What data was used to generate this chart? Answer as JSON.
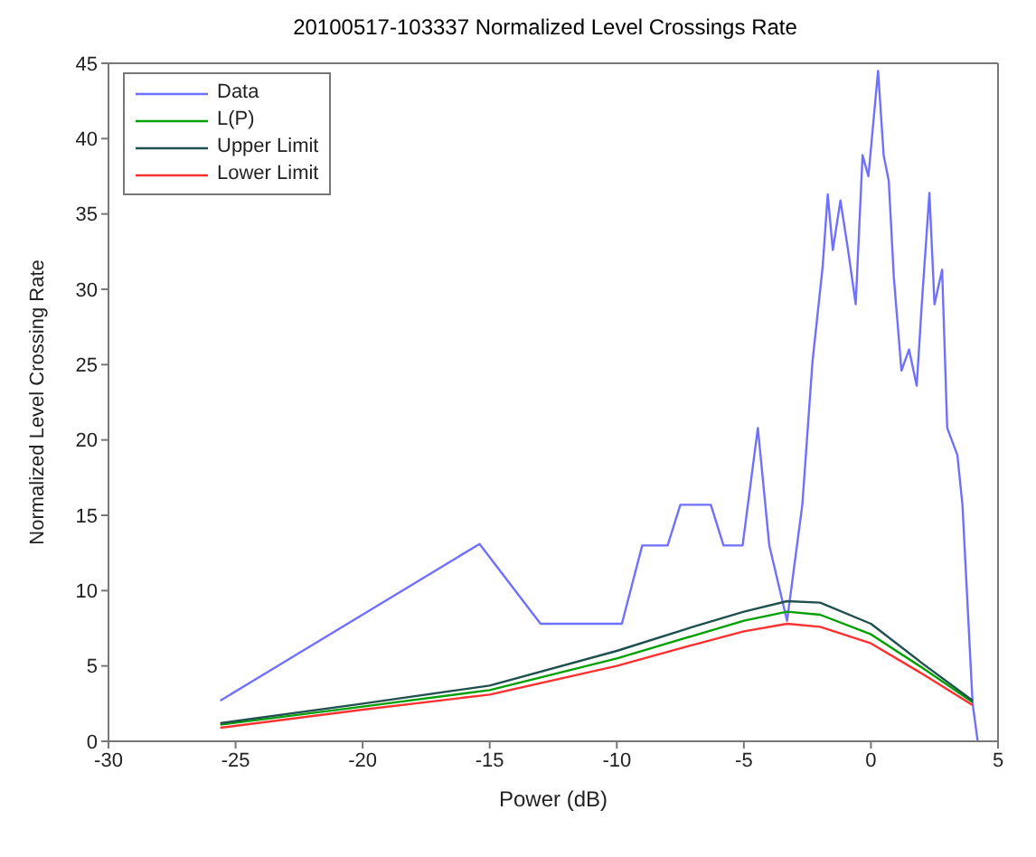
{
  "chart_data": {
    "type": "line",
    "title": "20100517-103337 Normalized Level Crossings Rate",
    "xlabel": "Power (dB)",
    "ylabel": "Normalized Level Crossing Rate",
    "xlim": [
      -30,
      5
    ],
    "xticks": [
      -30,
      -25,
      -20,
      -15,
      -10,
      -5,
      0,
      5
    ],
    "ylim": [
      0,
      45
    ],
    "yticks": [
      0,
      5,
      10,
      15,
      20,
      25,
      30,
      35,
      40,
      45
    ],
    "grid": false,
    "legend": "top left",
    "marker": "none",
    "line_style": "solid",
    "series": [
      {
        "name": "Data",
        "color": "#7070ff",
        "x": [
          -25.6,
          -15.4,
          -13,
          -9.8,
          -9,
          -8,
          -7.5,
          -6.3,
          -5.8,
          -5.05,
          -4.45,
          -4,
          -3.3,
          -2.7,
          -2.3,
          -1.9,
          -1.7,
          -1.5,
          -1.2,
          -0.9,
          -0.6,
          -0.33,
          -0.1,
          0.28,
          0.5,
          0.7,
          0.9,
          1.2,
          1.5,
          1.8,
          2,
          2.3,
          2.5,
          2.8,
          3,
          3.4,
          3.6,
          4,
          4.2
        ],
        "values": [
          2.7,
          13.1,
          7.8,
          7.8,
          13,
          13,
          15.7,
          15.7,
          13,
          13,
          20.8,
          13,
          8,
          15.7,
          25.2,
          31.5,
          36.3,
          32.6,
          35.9,
          32.6,
          29,
          38.9,
          37.5,
          44.5,
          38.9,
          37.2,
          30.8,
          24.6,
          26,
          23.6,
          29,
          36.4,
          29,
          31.3,
          20.8,
          19,
          15.7,
          2.5,
          0
        ]
      },
      {
        "name": "L(P)",
        "color": "#00a000",
        "x": [
          -25.6,
          -20,
          -15,
          -10,
          -7,
          -5,
          -3.3,
          -2,
          0,
          2,
          4
        ],
        "values": [
          1.1,
          2.3,
          3.4,
          5.5,
          7,
          8,
          8.6,
          8.4,
          7.1,
          4.9,
          2.6
        ]
      },
      {
        "name": "Upper Limit",
        "color": "#1f4f4f",
        "x": [
          -25.6,
          -20,
          -15,
          -10,
          -7,
          -5,
          -3.3,
          -2,
          0,
          2,
          4
        ],
        "values": [
          1.2,
          2.5,
          3.7,
          6,
          7.6,
          8.6,
          9.3,
          9.2,
          7.8,
          5.2,
          2.7
        ]
      },
      {
        "name": "Lower Limit",
        "color": "#ff3030",
        "x": [
          -25.6,
          -20,
          -15,
          -10,
          -7,
          -5,
          -3.3,
          -2,
          0,
          2,
          4
        ],
        "values": [
          0.9,
          2.1,
          3.1,
          5,
          6.4,
          7.3,
          7.8,
          7.6,
          6.5,
          4.5,
          2.4
        ]
      }
    ]
  }
}
